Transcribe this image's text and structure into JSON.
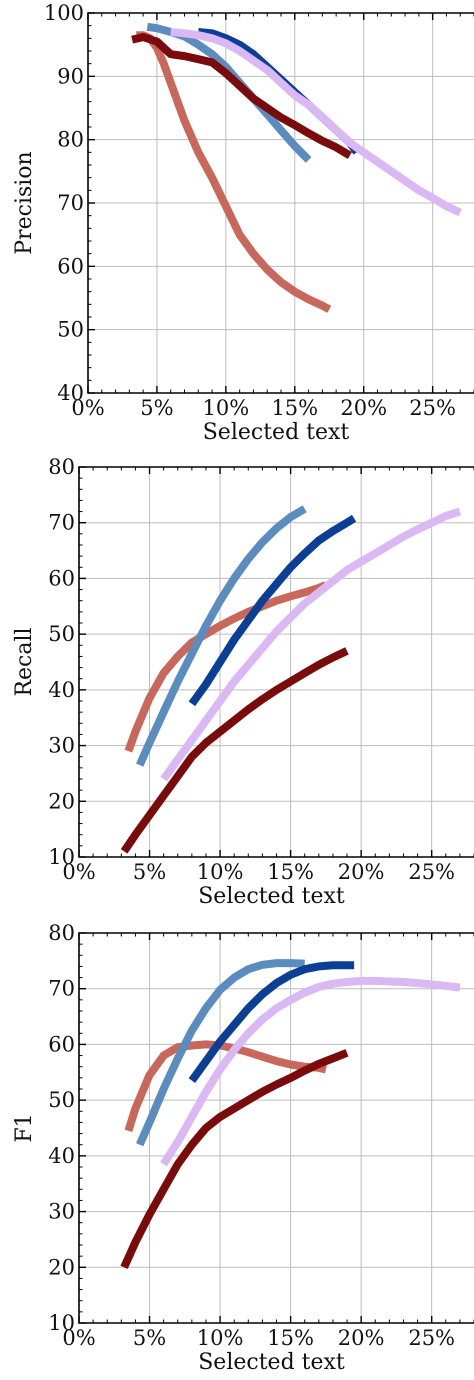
{
  "chart_data": [
    {
      "type": "line",
      "xlabel": "Selected text",
      "ylabel": "Precision",
      "xlim": [
        0,
        28
      ],
      "ylim": [
        40,
        100
      ],
      "x_tick_labels": [
        "0%",
        "5%",
        "10%",
        "15%",
        "20%",
        "25%"
      ],
      "y_tick_labels": [
        "40",
        "50",
        "60",
        "70",
        "80",
        "90",
        "100"
      ],
      "grid": true,
      "series": [
        {
          "color": "#c8675a",
          "x": [
            3.5,
            4.0,
            4.5,
            5.0,
            5.5,
            6.0,
            7.0,
            8.0,
            9.0,
            10.0,
            11.0,
            12.0,
            13.0,
            14.0,
            15.0,
            16.0,
            17.0,
            17.5
          ],
          "y": [
            96.5,
            96.5,
            96.0,
            94.5,
            92.0,
            89.0,
            83.0,
            78.0,
            74.0,
            69.5,
            65.0,
            62.0,
            59.5,
            57.5,
            56.0,
            54.8,
            53.8,
            53.2
          ]
        },
        {
          "color": "#5b8cbf",
          "x": [
            4.3,
            5.0,
            6.0,
            7.0,
            8.0,
            9.0,
            10.0,
            11.0,
            12.0,
            13.0,
            14.0,
            15.0,
            16.0
          ],
          "y": [
            97.8,
            97.6,
            97.0,
            96.3,
            95.0,
            93.5,
            91.5,
            89.0,
            86.5,
            84.0,
            81.5,
            79.0,
            76.8
          ]
        },
        {
          "color": "#0b3f96",
          "x": [
            8.0,
            9.0,
            10.0,
            11.0,
            12.0,
            13.0,
            14.0,
            15.0,
            16.0,
            17.0,
            18.0,
            19.0,
            19.5
          ],
          "y": [
            97.0,
            96.8,
            96.0,
            95.0,
            93.5,
            91.5,
            89.5,
            87.5,
            85.5,
            83.5,
            81.5,
            79.5,
            78.0
          ]
        },
        {
          "color": "#7b0a0a",
          "x": [
            3.2,
            4.0,
            5.0,
            6.0,
            7.0,
            8.0,
            9.0,
            10.0,
            11.0,
            12.0,
            13.0,
            14.0,
            15.0,
            16.0,
            17.0,
            18.0,
            19.0
          ],
          "y": [
            95.8,
            96.2,
            95.5,
            93.5,
            93.2,
            92.7,
            92.2,
            90.5,
            88.5,
            86.5,
            85.0,
            83.5,
            82.3,
            81.0,
            79.8,
            78.8,
            77.5
          ]
        },
        {
          "color": "#d9b8f4",
          "x": [
            6.0,
            7.0,
            8.0,
            9.0,
            10.0,
            11.0,
            12.0,
            13.0,
            14.0,
            15.0,
            16.0,
            17.0,
            18.0,
            19.0,
            20.0,
            21.0,
            22.0,
            23.0,
            24.0,
            25.0,
            26.0,
            27.0
          ],
          "y": [
            97.0,
            96.8,
            96.5,
            96.0,
            95.2,
            94.0,
            92.5,
            91.0,
            89.0,
            87.0,
            85.5,
            83.5,
            81.5,
            79.5,
            78.0,
            76.5,
            75.0,
            73.5,
            72.0,
            70.8,
            69.5,
            68.5
          ]
        }
      ]
    },
    {
      "type": "line",
      "xlabel": "Selected text",
      "ylabel": "Recall",
      "xlim": [
        0,
        28
      ],
      "ylim": [
        10,
        80
      ],
      "x_tick_labels": [
        "0%",
        "5%",
        "10%",
        "15%",
        "20%",
        "25%"
      ],
      "y_tick_labels": [
        "10",
        "20",
        "30",
        "40",
        "50",
        "60",
        "70",
        "80"
      ],
      "grid": true,
      "series": [
        {
          "color": "#c8675a",
          "x": [
            3.5,
            4.0,
            5.0,
            6.0,
            7.0,
            8.0,
            9.0,
            10.0,
            11.0,
            12.0,
            13.0,
            14.0,
            15.0,
            16.0,
            17.0,
            17.5
          ],
          "y": [
            29.0,
            32.5,
            38.5,
            43.0,
            46.0,
            48.5,
            50.0,
            51.5,
            52.8,
            54.0,
            55.0,
            56.0,
            56.8,
            57.5,
            58.3,
            58.8
          ]
        },
        {
          "color": "#5b8cbf",
          "x": [
            4.3,
            5.0,
            6.0,
            7.0,
            8.0,
            9.0,
            10.0,
            11.0,
            12.0,
            13.0,
            14.0,
            15.0,
            16.0
          ],
          "y": [
            26.5,
            30.5,
            36.0,
            41.5,
            46.5,
            51.5,
            56.0,
            60.0,
            63.5,
            66.5,
            69.0,
            71.0,
            72.5
          ]
        },
        {
          "color": "#0b3f96",
          "x": [
            8.0,
            9.0,
            10.0,
            11.0,
            12.0,
            13.0,
            14.0,
            15.0,
            16.0,
            17.0,
            18.0,
            19.0,
            19.5
          ],
          "y": [
            37.5,
            41.0,
            45.0,
            49.0,
            52.5,
            56.0,
            59.0,
            62.0,
            64.5,
            66.8,
            68.5,
            70.0,
            70.8
          ]
        },
        {
          "color": "#7b0a0a",
          "x": [
            3.2,
            4.0,
            5.0,
            6.0,
            7.0,
            8.0,
            9.0,
            10.0,
            11.0,
            12.0,
            13.0,
            14.0,
            15.0,
            16.0,
            17.0,
            18.0,
            19.0
          ],
          "y": [
            11.0,
            14.0,
            17.5,
            21.0,
            24.5,
            28.0,
            30.5,
            32.5,
            34.5,
            36.5,
            38.3,
            40.0,
            41.5,
            43.0,
            44.5,
            45.8,
            47.0
          ]
        },
        {
          "color": "#d9b8f4",
          "x": [
            6.0,
            7.0,
            8.0,
            9.0,
            10.0,
            11.0,
            12.0,
            13.0,
            14.0,
            15.0,
            16.0,
            17.0,
            18.0,
            19.0,
            20.0,
            21.0,
            22.0,
            23.0,
            24.0,
            25.0,
            26.0,
            27.0
          ],
          "y": [
            24.0,
            27.5,
            31.0,
            34.5,
            38.0,
            41.5,
            44.5,
            47.5,
            50.5,
            53.0,
            55.5,
            57.5,
            59.5,
            61.5,
            63.0,
            64.5,
            66.0,
            67.5,
            68.8,
            70.0,
            71.2,
            72.0
          ]
        }
      ]
    },
    {
      "type": "line",
      "xlabel": "Selected text",
      "ylabel": "F1",
      "xlim": [
        0,
        28
      ],
      "ylim": [
        10,
        80
      ],
      "x_tick_labels": [
        "0%",
        "5%",
        "10%",
        "15%",
        "20%",
        "25%"
      ],
      "y_tick_labels": [
        "10",
        "20",
        "30",
        "40",
        "50",
        "60",
        "70",
        "80"
      ],
      "grid": true,
      "series": [
        {
          "color": "#c8675a",
          "x": [
            3.5,
            4.0,
            5.0,
            6.0,
            7.0,
            8.0,
            9.0,
            10.0,
            11.0,
            12.0,
            13.0,
            14.0,
            15.0,
            16.0,
            17.0,
            17.5
          ],
          "y": [
            44.5,
            48.5,
            54.5,
            58.0,
            59.5,
            59.8,
            60.0,
            59.8,
            59.3,
            58.6,
            57.8,
            57.0,
            56.4,
            56.0,
            55.8,
            55.5
          ]
        },
        {
          "color": "#5b8cbf",
          "x": [
            4.3,
            5.0,
            6.0,
            7.0,
            8.0,
            9.0,
            10.0,
            11.0,
            12.0,
            13.0,
            14.0,
            15.0,
            16.0
          ],
          "y": [
            42.0,
            46.0,
            52.0,
            57.5,
            62.5,
            66.5,
            69.8,
            72.0,
            73.5,
            74.3,
            74.6,
            74.6,
            74.5
          ]
        },
        {
          "color": "#0b3f96",
          "x": [
            8.0,
            9.0,
            10.0,
            11.0,
            12.0,
            13.0,
            14.0,
            15.0,
            16.0,
            17.0,
            18.0,
            19.0,
            19.5
          ],
          "y": [
            53.5,
            57.0,
            60.5,
            63.5,
            66.5,
            69.0,
            71.0,
            72.5,
            73.5,
            74.0,
            74.2,
            74.2,
            74.2
          ]
        },
        {
          "color": "#7b0a0a",
          "x": [
            3.2,
            4.0,
            5.0,
            6.0,
            7.0,
            8.0,
            9.0,
            10.0,
            11.0,
            12.0,
            13.0,
            14.0,
            15.0,
            16.0,
            17.0,
            18.0,
            19.0
          ],
          "y": [
            20.0,
            24.5,
            29.5,
            34.0,
            38.5,
            42.0,
            45.0,
            47.0,
            48.5,
            50.0,
            51.5,
            52.8,
            54.0,
            55.3,
            56.5,
            57.5,
            58.5
          ]
        },
        {
          "color": "#d9b8f4",
          "x": [
            6.0,
            7.0,
            8.0,
            9.0,
            10.0,
            11.0,
            12.0,
            13.0,
            14.0,
            15.0,
            16.0,
            17.0,
            18.0,
            19.0,
            20.0,
            21.0,
            22.0,
            23.0,
            24.0,
            25.0,
            26.0,
            27.0
          ],
          "y": [
            38.5,
            42.5,
            47.0,
            51.5,
            55.5,
            59.0,
            62.0,
            64.5,
            66.5,
            68.0,
            69.3,
            70.3,
            70.9,
            71.2,
            71.4,
            71.4,
            71.3,
            71.2,
            71.0,
            70.8,
            70.5,
            70.2
          ]
        }
      ]
    }
  ]
}
